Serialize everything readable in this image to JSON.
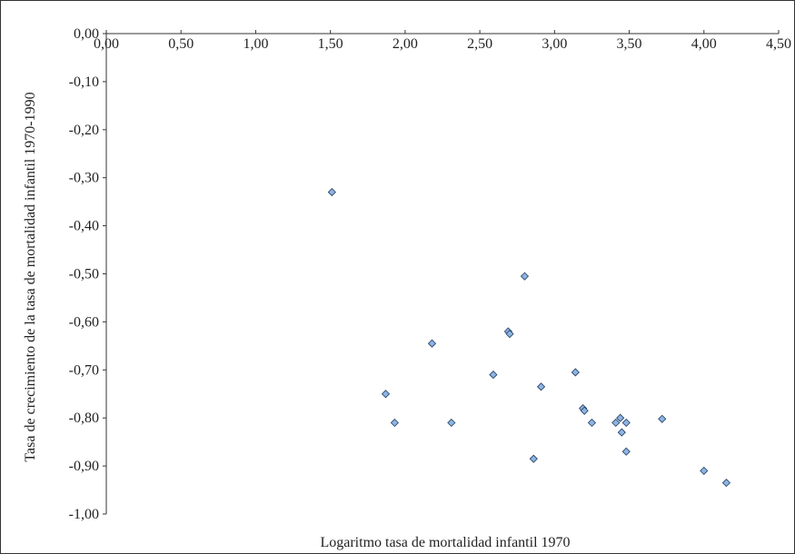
{
  "chart_data": {
    "type": "scatter",
    "x_label": "Logaritmo tasa de mortalidad infantil 1970",
    "y_label": "Tasa de crecimiento de la tasa de mortalidad infantil 1970-1990",
    "xlim": [
      0,
      4.5
    ],
    "xticks": [
      {
        "value": 0,
        "label": "0,00"
      },
      {
        "value": 0.5,
        "label": "0,50"
      },
      {
        "value": 1,
        "label": "1,00"
      },
      {
        "value": 1.5,
        "label": "1,50"
      },
      {
        "value": 2,
        "label": "2,00"
      },
      {
        "value": 2.5,
        "label": "2,50"
      },
      {
        "value": 3,
        "label": "3,00"
      },
      {
        "value": 3.5,
        "label": "3,50"
      },
      {
        "value": 4,
        "label": "4,00"
      },
      {
        "value": 4.5,
        "label": "4,50"
      }
    ],
    "ylim": [
      -1,
      0
    ],
    "yticks": [
      {
        "value": 0,
        "label": "0,00"
      },
      {
        "value": -0.1,
        "label": "-0,10"
      },
      {
        "value": -0.2,
        "label": "-0,20"
      },
      {
        "value": -0.3,
        "label": "-0,30"
      },
      {
        "value": -0.4,
        "label": "-0,40"
      },
      {
        "value": -0.5,
        "label": "-0,50"
      },
      {
        "value": -0.6,
        "label": "-0,60"
      },
      {
        "value": -0.7,
        "label": "-0,70"
      },
      {
        "value": -0.8,
        "label": "-0,80"
      },
      {
        "value": -0.9,
        "label": "-0,90"
      },
      {
        "value": -1,
        "label": "-1,00"
      }
    ],
    "color": "#8db4e2",
    "x": [
      1.51,
      2.18,
      1.87,
      1.93,
      2.31,
      2.59,
      2.8,
      2.69,
      2.7,
      2.91,
      2.86,
      3.14,
      3.19,
      3.2,
      3.25,
      3.41,
      3.44,
      3.45,
      3.48,
      3.48,
      3.72,
      4.0,
      4.15
    ],
    "values": [
      -0.33,
      -0.645,
      -0.75,
      -0.81,
      -0.81,
      -0.71,
      -0.505,
      -0.62,
      -0.625,
      -0.735,
      -0.885,
      -0.705,
      -0.78,
      -0.785,
      -0.81,
      -0.81,
      -0.8,
      -0.83,
      -0.81,
      -0.87,
      -0.802,
      -0.91,
      -0.935
    ]
  }
}
